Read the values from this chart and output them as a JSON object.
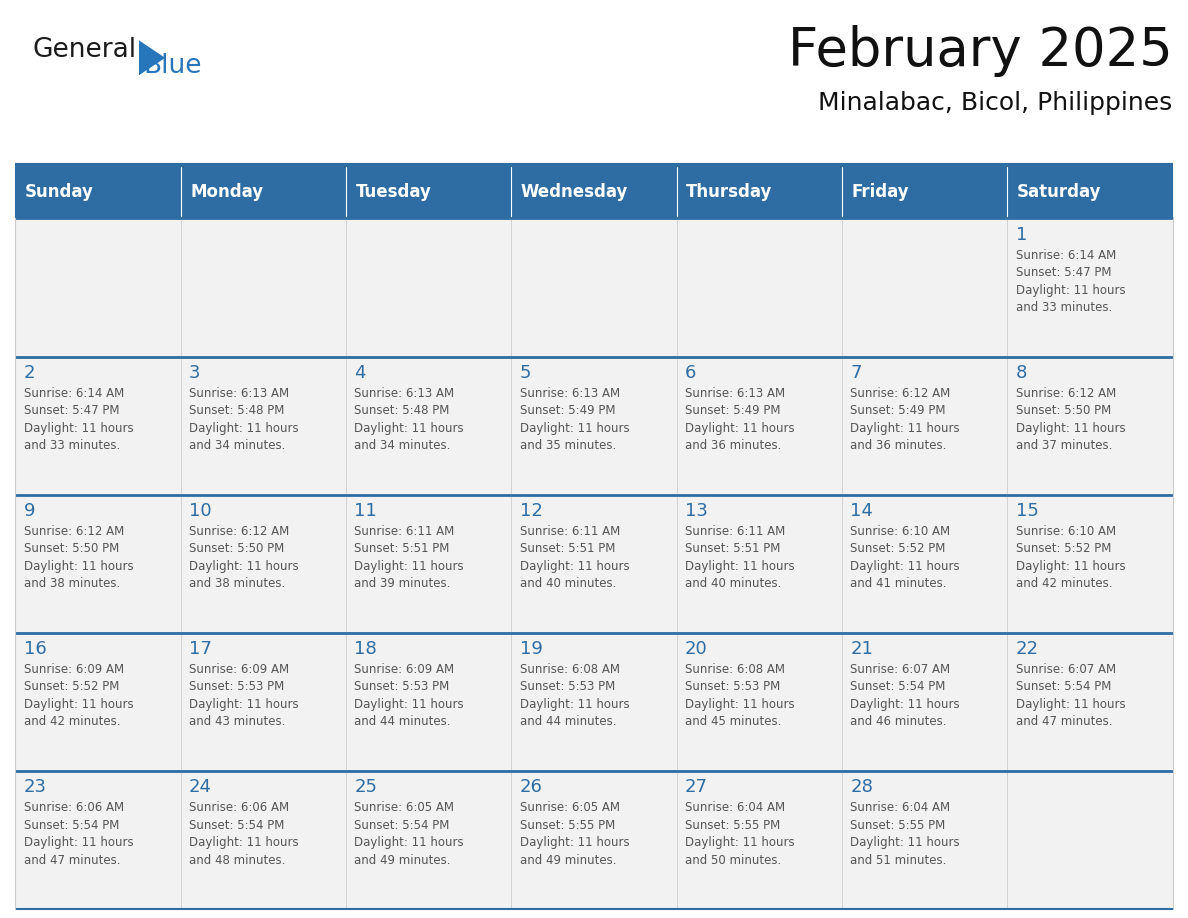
{
  "title": "February 2025",
  "subtitle": "Minalabac, Bicol, Philippines",
  "header_bg": "#2E6DA4",
  "header_text": "#FFFFFF",
  "cell_bg": "#F2F2F2",
  "day_number_color": "#2E6DA4",
  "info_text_color": "#555555",
  "border_color": "#CCCCCC",
  "week_border_color": "#2E6DA4",
  "days_of_week": [
    "Sunday",
    "Monday",
    "Tuesday",
    "Wednesday",
    "Thursday",
    "Friday",
    "Saturday"
  ],
  "weeks": [
    [
      {
        "day": "",
        "info": ""
      },
      {
        "day": "",
        "info": ""
      },
      {
        "day": "",
        "info": ""
      },
      {
        "day": "",
        "info": ""
      },
      {
        "day": "",
        "info": ""
      },
      {
        "day": "",
        "info": ""
      },
      {
        "day": "1",
        "info": "Sunrise: 6:14 AM\nSunset: 5:47 PM\nDaylight: 11 hours\nand 33 minutes."
      }
    ],
    [
      {
        "day": "2",
        "info": "Sunrise: 6:14 AM\nSunset: 5:47 PM\nDaylight: 11 hours\nand 33 minutes."
      },
      {
        "day": "3",
        "info": "Sunrise: 6:13 AM\nSunset: 5:48 PM\nDaylight: 11 hours\nand 34 minutes."
      },
      {
        "day": "4",
        "info": "Sunrise: 6:13 AM\nSunset: 5:48 PM\nDaylight: 11 hours\nand 34 minutes."
      },
      {
        "day": "5",
        "info": "Sunrise: 6:13 AM\nSunset: 5:49 PM\nDaylight: 11 hours\nand 35 minutes."
      },
      {
        "day": "6",
        "info": "Sunrise: 6:13 AM\nSunset: 5:49 PM\nDaylight: 11 hours\nand 36 minutes."
      },
      {
        "day": "7",
        "info": "Sunrise: 6:12 AM\nSunset: 5:49 PM\nDaylight: 11 hours\nand 36 minutes."
      },
      {
        "day": "8",
        "info": "Sunrise: 6:12 AM\nSunset: 5:50 PM\nDaylight: 11 hours\nand 37 minutes."
      }
    ],
    [
      {
        "day": "9",
        "info": "Sunrise: 6:12 AM\nSunset: 5:50 PM\nDaylight: 11 hours\nand 38 minutes."
      },
      {
        "day": "10",
        "info": "Sunrise: 6:12 AM\nSunset: 5:50 PM\nDaylight: 11 hours\nand 38 minutes."
      },
      {
        "day": "11",
        "info": "Sunrise: 6:11 AM\nSunset: 5:51 PM\nDaylight: 11 hours\nand 39 minutes."
      },
      {
        "day": "12",
        "info": "Sunrise: 6:11 AM\nSunset: 5:51 PM\nDaylight: 11 hours\nand 40 minutes."
      },
      {
        "day": "13",
        "info": "Sunrise: 6:11 AM\nSunset: 5:51 PM\nDaylight: 11 hours\nand 40 minutes."
      },
      {
        "day": "14",
        "info": "Sunrise: 6:10 AM\nSunset: 5:52 PM\nDaylight: 11 hours\nand 41 minutes."
      },
      {
        "day": "15",
        "info": "Sunrise: 6:10 AM\nSunset: 5:52 PM\nDaylight: 11 hours\nand 42 minutes."
      }
    ],
    [
      {
        "day": "16",
        "info": "Sunrise: 6:09 AM\nSunset: 5:52 PM\nDaylight: 11 hours\nand 42 minutes."
      },
      {
        "day": "17",
        "info": "Sunrise: 6:09 AM\nSunset: 5:53 PM\nDaylight: 11 hours\nand 43 minutes."
      },
      {
        "day": "18",
        "info": "Sunrise: 6:09 AM\nSunset: 5:53 PM\nDaylight: 11 hours\nand 44 minutes."
      },
      {
        "day": "19",
        "info": "Sunrise: 6:08 AM\nSunset: 5:53 PM\nDaylight: 11 hours\nand 44 minutes."
      },
      {
        "day": "20",
        "info": "Sunrise: 6:08 AM\nSunset: 5:53 PM\nDaylight: 11 hours\nand 45 minutes."
      },
      {
        "day": "21",
        "info": "Sunrise: 6:07 AM\nSunset: 5:54 PM\nDaylight: 11 hours\nand 46 minutes."
      },
      {
        "day": "22",
        "info": "Sunrise: 6:07 AM\nSunset: 5:54 PM\nDaylight: 11 hours\nand 47 minutes."
      }
    ],
    [
      {
        "day": "23",
        "info": "Sunrise: 6:06 AM\nSunset: 5:54 PM\nDaylight: 11 hours\nand 47 minutes."
      },
      {
        "day": "24",
        "info": "Sunrise: 6:06 AM\nSunset: 5:54 PM\nDaylight: 11 hours\nand 48 minutes."
      },
      {
        "day": "25",
        "info": "Sunrise: 6:05 AM\nSunset: 5:54 PM\nDaylight: 11 hours\nand 49 minutes."
      },
      {
        "day": "26",
        "info": "Sunrise: 6:05 AM\nSunset: 5:55 PM\nDaylight: 11 hours\nand 49 minutes."
      },
      {
        "day": "27",
        "info": "Sunrise: 6:04 AM\nSunset: 5:55 PM\nDaylight: 11 hours\nand 50 minutes."
      },
      {
        "day": "28",
        "info": "Sunrise: 6:04 AM\nSunset: 5:55 PM\nDaylight: 11 hours\nand 51 minutes."
      },
      {
        "day": "",
        "info": ""
      }
    ]
  ],
  "logo_general_color": "#1A1A1A",
  "logo_blue_color": "#2775BB",
  "logo_triangle_color": "#2775BB",
  "title_fontsize": 38,
  "subtitle_fontsize": 18,
  "header_fontsize": 12,
  "day_num_fontsize": 13,
  "info_fontsize": 8.5
}
